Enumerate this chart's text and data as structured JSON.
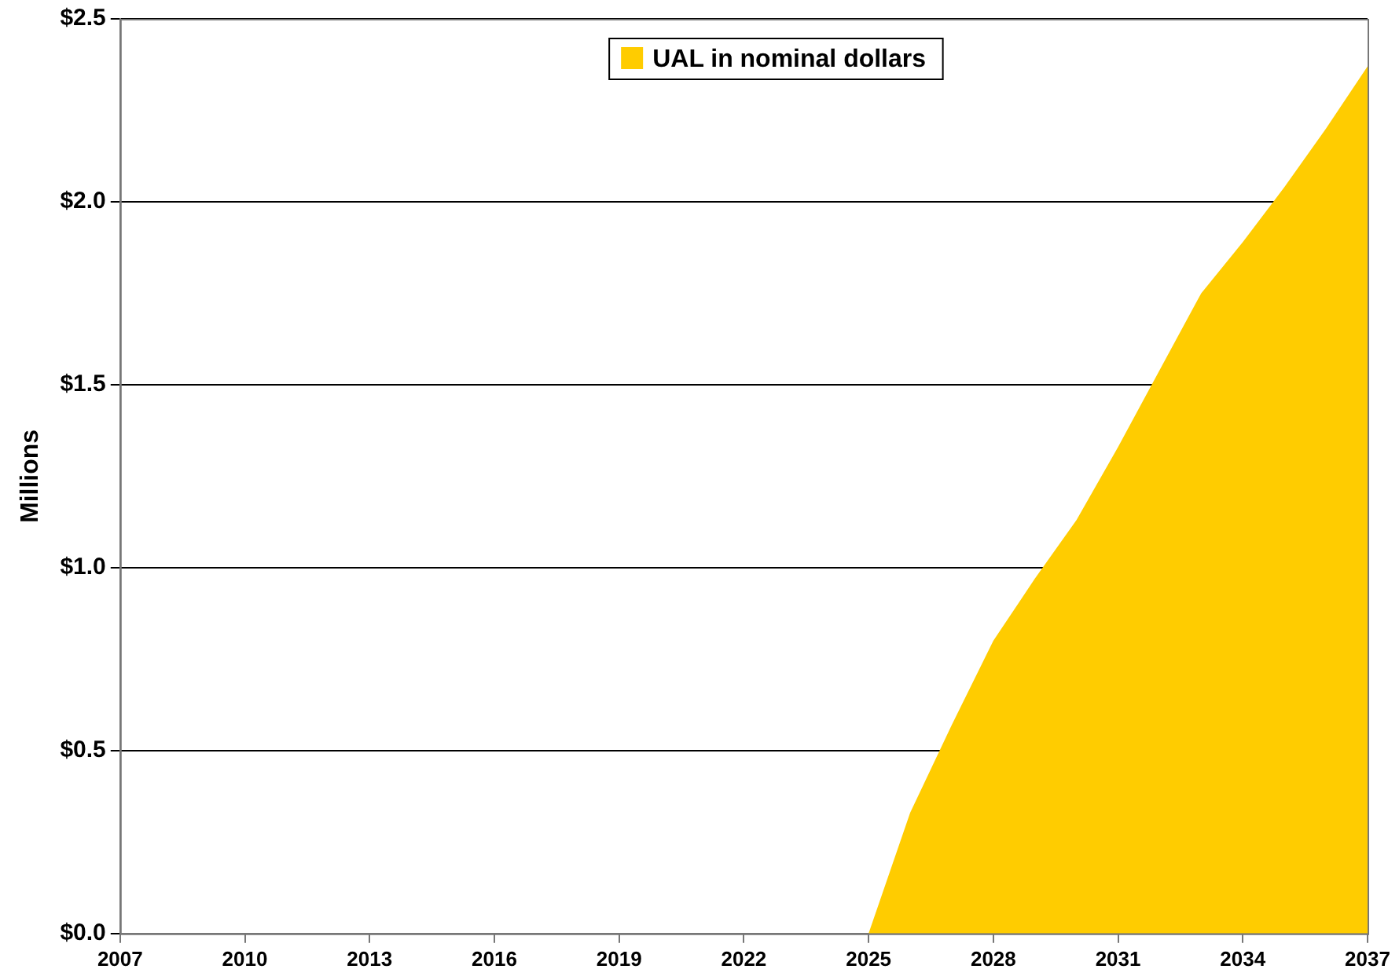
{
  "chart_data": {
    "type": "area",
    "ylabel": "Millions",
    "x": [
      2007,
      2008,
      2009,
      2010,
      2011,
      2012,
      2013,
      2014,
      2015,
      2016,
      2017,
      2018,
      2019,
      2020,
      2021,
      2022,
      2023,
      2024,
      2025,
      2026,
      2027,
      2028,
      2029,
      2030,
      2031,
      2032,
      2033,
      2034,
      2035,
      2036,
      2037
    ],
    "series": [
      {
        "name": "UAL in nominal dollars",
        "color": "#ffcc00",
        "values": [
          0,
          0,
          0,
          0,
          0,
          0,
          0,
          0,
          0,
          0,
          0,
          0,
          0,
          0,
          0,
          0,
          0,
          0,
          0,
          0.33,
          0.57,
          0.8,
          0.97,
          1.13,
          1.33,
          1.54,
          1.75,
          1.89,
          2.04,
          2.2,
          2.37
        ]
      }
    ],
    "xlim": [
      2007,
      2037
    ],
    "xticks": [
      2007,
      2010,
      2013,
      2016,
      2019,
      2022,
      2025,
      2028,
      2031,
      2034,
      2037
    ],
    "ylim": [
      0,
      2.5
    ],
    "yticks": [
      {
        "value": 0,
        "label": "$0.0"
      },
      {
        "value": 0.5,
        "label": "$0.5"
      },
      {
        "value": 1,
        "label": "$1.0"
      },
      {
        "value": 1.5,
        "label": "$1.5"
      },
      {
        "value": 2,
        "label": "$2.0"
      },
      {
        "value": 2.5,
        "label": "$2.5"
      }
    ],
    "grid": "y",
    "legend": "top"
  }
}
